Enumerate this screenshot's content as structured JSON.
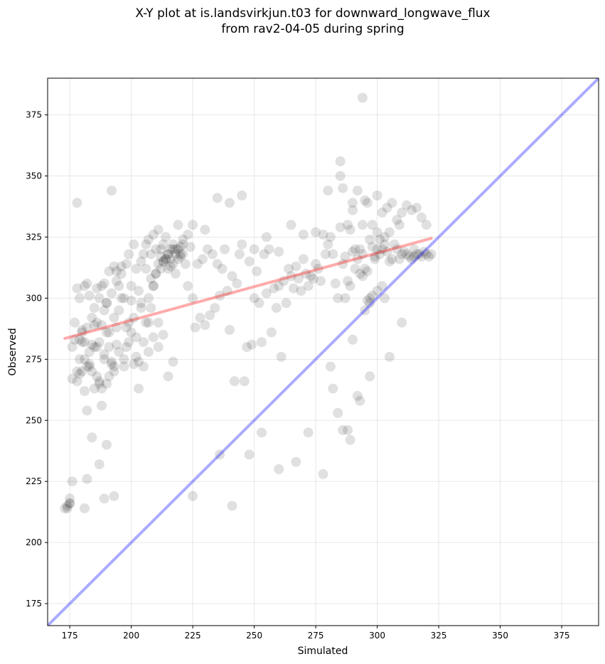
{
  "title_lines": [
    "X-Y plot at is.landsvirkjun.t03 for downward_longwave_flux",
    "from rav2-04-05 during spring"
  ],
  "colors": {
    "points": "#000000",
    "fit_line": "#ff0000",
    "identity_line": "#0000ff",
    "grid": "#b0b0b0",
    "background": "#ffffff"
  },
  "chart_data": {
    "type": "scatter",
    "title": "X-Y plot at is.landsvirkjun.t03 for downward_longwave_flux from rav2-04-05 during spring",
    "xlabel": "Simulated",
    "ylabel": "Observed",
    "xlim": [
      166,
      390
    ],
    "ylim": [
      166,
      390
    ],
    "xticks": [
      175,
      200,
      225,
      250,
      275,
      300,
      325,
      350,
      375
    ],
    "yticks": [
      175,
      200,
      225,
      250,
      275,
      300,
      325,
      350,
      375
    ],
    "grid": true,
    "legend": "none",
    "fit_line": {
      "x": [
        173,
        322
      ],
      "y": [
        283.5,
        324.5
      ]
    },
    "identity_line": {
      "x": [
        166,
        390
      ],
      "y": [
        166,
        390
      ]
    },
    "series": [
      {
        "x": [
          173,
          174,
          175,
          176,
          176,
          177,
          178,
          178,
          179,
          179,
          180,
          180,
          181,
          181,
          182,
          182,
          183,
          183,
          184,
          184,
          185,
          185,
          186,
          186,
          187,
          187,
          188,
          188,
          189,
          189,
          190,
          190,
          191,
          191,
          192,
          192,
          193,
          193,
          194,
          194,
          195,
          195,
          196,
          196,
          197,
          197,
          198,
          198,
          199,
          199,
          200,
          200,
          201,
          201,
          202,
          202,
          203,
          203,
          204,
          204,
          205,
          205,
          206,
          206,
          207,
          207,
          208,
          208,
          209,
          209,
          210,
          210,
          211,
          211,
          212,
          212,
          213,
          213,
          214,
          214,
          215,
          215,
          216,
          216,
          217,
          217,
          218,
          218,
          219,
          219,
          220,
          220,
          221,
          221,
          222,
          223,
          224,
          225,
          226,
          227,
          228,
          229,
          230,
          231,
          232,
          233,
          234,
          235,
          236,
          237,
          238,
          239,
          240,
          241,
          242,
          243,
          244,
          245,
          246,
          247,
          248,
          249,
          250,
          251,
          252,
          253,
          254,
          255,
          256,
          257,
          258,
          259,
          260,
          261,
          262,
          263,
          264,
          265,
          266,
          267,
          268,
          269,
          270,
          271,
          272,
          273,
          274,
          275,
          276,
          277,
          278,
          279,
          280,
          281,
          282,
          283,
          284,
          285,
          286,
          287,
          288,
          289,
          290,
          291,
          292,
          293,
          294,
          295,
          296,
          297,
          298,
          299,
          300,
          301,
          302,
          303,
          304,
          305,
          306,
          307,
          308,
          309,
          310,
          311,
          312,
          313,
          314,
          315,
          316,
          317,
          318,
          319,
          320,
          321,
          322,
          178,
          180,
          182,
          184,
          186,
          188,
          190,
          192,
          194,
          196,
          198,
          200,
          202,
          204,
          206,
          208,
          210,
          212,
          214,
          216,
          218,
          220,
          286,
          288,
          290,
          292,
          294,
          296,
          298,
          300,
          302,
          304,
          306,
          308,
          310,
          312,
          314,
          316,
          318,
          320,
          175,
          177,
          179,
          181,
          183,
          185,
          187,
          189,
          191,
          193,
          176,
          178,
          180,
          182,
          184,
          186,
          188,
          190,
          192,
          194,
          230,
          235,
          240,
          245,
          250,
          255,
          260,
          265,
          270,
          275,
          280,
          285,
          290,
          295,
          300,
          287,
          289,
          291,
          293,
          295,
          297,
          299,
          301,
          303,
          305,
          207,
          209,
          211,
          213,
          215,
          217,
          219,
          221,
          223,
          225,
          179,
          181,
          183,
          185,
          187,
          189,
          191,
          193,
          195,
          197,
          199,
          201,
          203,
          205,
          207,
          209,
          211,
          213,
          215,
          217,
          294,
          285,
          282,
          278,
          260,
          267,
          272,
          248,
          253,
          241,
          236,
          225,
          193,
          189,
          181,
          175,
          174,
          187,
          190,
          182,
          293,
          288,
          284,
          289,
          292,
          286,
          290,
          281,
          297,
          305,
          310,
          315,
          309,
          303,
          298,
          297,
          302,
          300,
          296,
          294
        ],
        "y": [
          214,
          215,
          218,
          225,
          280,
          290,
          266,
          304,
          275,
          300,
          286,
          270,
          262,
          305,
          254,
          288,
          278,
          301,
          243,
          270,
          263,
          296,
          280,
          304,
          266,
          300,
          256,
          289,
          277,
          306,
          265,
          298,
          280,
          311,
          273,
          302,
          292,
          313,
          288,
          311,
          295,
          305,
          300,
          310,
          272,
          300,
          280,
          314,
          290,
          318,
          286,
          305,
          292,
          322,
          284,
          312,
          274,
          303,
          296,
          315,
          282,
          318,
          290,
          322,
          300,
          324,
          296,
          318,
          305,
          326,
          310,
          320,
          314,
          328,
          312,
          320,
          315,
          322,
          316,
          325,
          312,
          318,
          316,
          320,
          314,
          322,
          318,
          310,
          316,
          320,
          318,
          321,
          318,
          322,
          314,
          305,
          321,
          300,
          288,
          314,
          292,
          316,
          289,
          320,
          293,
          318,
          296,
          314,
          301,
          312,
          320,
          303,
          287,
          309,
          266,
          306,
          318,
          322,
          266,
          280,
          315,
          281,
          320,
          311,
          298,
          282,
          318,
          302,
          320,
          286,
          304,
          296,
          319,
          276,
          307,
          298,
          312,
          309,
          304,
          313,
          308,
          303,
          316,
          310,
          305,
          309,
          308,
          314,
          312,
          307,
          326,
          318,
          322,
          325,
          318,
          306,
          300,
          329,
          314,
          317,
          307,
          328,
          319,
          312,
          316,
          320,
          318,
          312,
          311,
          324,
          321,
          316,
          327,
          318,
          320,
          322,
          319,
          315,
          316,
          322,
          320,
          316,
          318,
          319,
          318,
          317,
          316,
          317,
          318,
          318,
          317,
          319,
          318,
          317,
          318,
          339,
          287,
          306,
          292,
          290,
          305,
          298,
          344,
          307,
          313,
          288,
          299,
          276,
          298,
          312,
          308,
          310,
          317,
          316,
          313,
          320,
          317,
          345,
          330,
          336,
          344,
          330,
          339,
          330,
          320,
          335,
          337,
          339,
          332,
          335,
          338,
          336,
          337,
          333,
          330,
          216,
          283,
          283,
          282,
          273,
          289,
          282,
          295,
          286,
          272,
          267,
          270,
          282,
          272,
          281,
          268,
          263,
          286,
          274,
          281,
          328,
          341,
          339,
          342,
          300,
          325,
          305,
          330,
          326,
          327,
          344,
          350,
          339,
          340,
          342,
          300,
          305,
          320,
          310,
          295,
          300,
          317,
          324,
          325,
          327,
          290,
          305,
          290,
          315,
          318,
          320,
          330,
          324,
          326,
          330,
          269,
          275,
          272,
          280,
          265,
          275,
          268,
          270,
          278,
          275,
          282,
          273,
          263,
          272,
          278,
          284,
          280,
          285,
          268,
          274,
          382,
          356,
          263,
          228,
          230,
          233,
          245,
          236,
          245,
          215,
          236,
          219,
          219,
          218,
          214,
          216,
          214,
          232,
          240,
          226,
          258,
          246,
          253,
          242,
          260,
          246,
          283,
          272,
          268,
          276,
          290,
          320,
          330,
          300,
          301,
          298,
          305,
          303,
          299,
          309
        ]
      }
    ]
  }
}
